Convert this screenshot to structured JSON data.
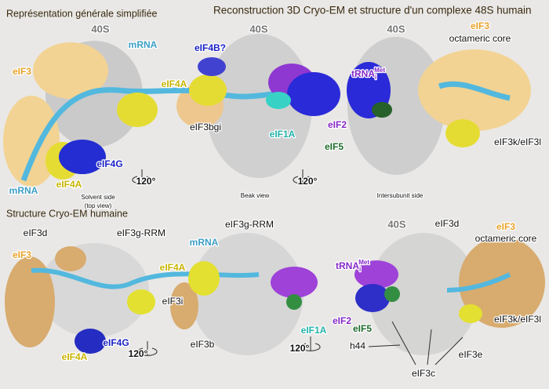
{
  "header": {
    "left_title": "Représentation générale simplifiée",
    "right_title": "Reconstruction 3D Cryo-EM et structure d'un complexe 48S humain"
  },
  "top_panel": {
    "labels": [
      "40S",
      "40S",
      "40S",
      "eIF3",
      "mRNA",
      "eIF4B?",
      "eIF4A",
      "eIF3",
      "octameric core",
      "eIF3bgi",
      "eIF1A",
      "eIF2",
      "eIF5",
      "eIF3k/eIF3l",
      "eIF4G",
      "mRNA",
      "eIF4A",
      "Solvent side",
      "(top view)",
      "120°",
      "120°",
      "Beak view",
      "Intersubunit side"
    ],
    "trna": {
      "name": "tRNA",
      "sub": "i",
      "sup": "Met"
    }
  },
  "bottom_panel": {
    "title": "Structure Cryo-EM humaine",
    "labels": [
      "eIF3d",
      "eIF3g-RRM",
      "eIF3g-RRM",
      "mRNA",
      "eIF4A",
      "eIF3",
      "eIF3i",
      "eIF3b",
      "eIF1A",
      "eIF2",
      "eIF5",
      "40S",
      "eIF3d",
      "eIF3",
      "octameric core",
      "h44",
      "eIF3c",
      "eIF3k/eIF3l",
      "eIF3e",
      "eIF4G",
      "eIF4A",
      "120°",
      "120°"
    ],
    "trna": {
      "name": "tRNA",
      "sub": "i",
      "sup": "Met"
    }
  }
}
